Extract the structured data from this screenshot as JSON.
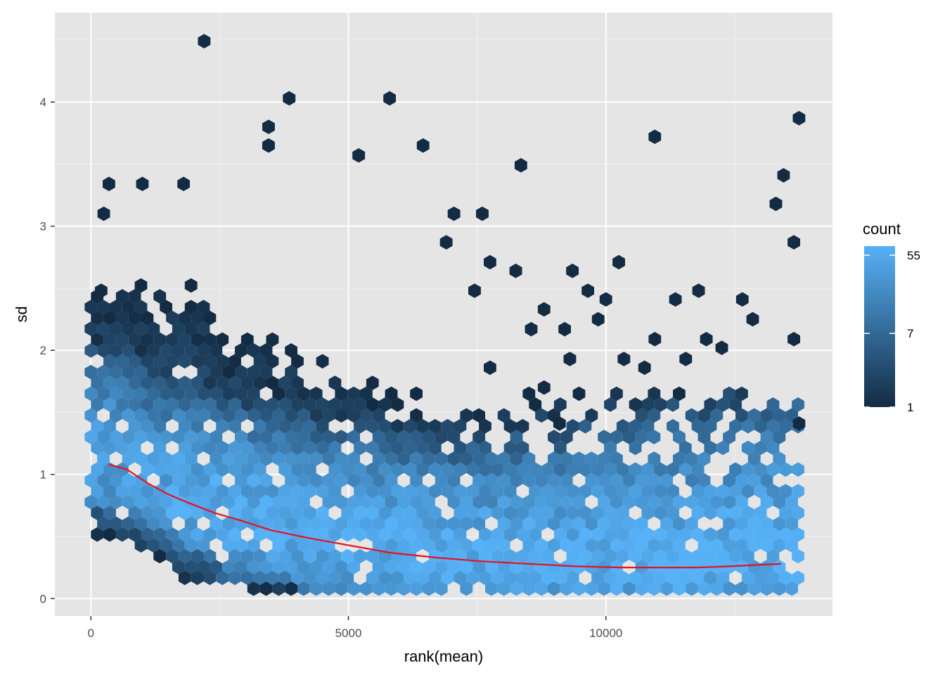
{
  "chart_data": {
    "type": "hexbin",
    "xlabel": "rank(mean)",
    "ylabel": "sd",
    "xlim": [
      -700,
      14400
    ],
    "ylim": [
      -0.14,
      4.72
    ],
    "x_ticks": [
      0,
      5000,
      10000
    ],
    "x_tick_labels": [
      "0",
      "5000",
      "10000"
    ],
    "y_ticks": [
      0,
      1,
      2,
      3,
      4
    ],
    "y_tick_labels": [
      "0",
      "1",
      "2",
      "3",
      "4"
    ],
    "grid": true,
    "background": "#e5e5e5",
    "legend": {
      "title": "count",
      "placement": "right",
      "scale": "log",
      "min": 1,
      "max": 70,
      "breaks": [
        1,
        7,
        55
      ],
      "break_labels": [
        "1",
        "7",
        "55"
      ],
      "color_low": "#132b43",
      "color_high": "#56b1f7"
    },
    "trend_line": {
      "color": "#e8101e",
      "x": [
        350,
        700,
        1100,
        1500,
        1900,
        2400,
        2900,
        3500,
        4200,
        5000,
        5800,
        6700,
        7600,
        8500,
        9400,
        10300,
        11200,
        11800,
        12400,
        12900,
        13400
      ],
      "y": [
        1.08,
        1.04,
        0.93,
        0.84,
        0.77,
        0.69,
        0.63,
        0.55,
        0.49,
        0.43,
        0.37,
        0.33,
        0.3,
        0.28,
        0.26,
        0.25,
        0.25,
        0.25,
        0.26,
        0.27,
        0.28
      ]
    },
    "isolated_points": [
      {
        "x": 2200,
        "y": 4.49
      },
      {
        "x": 3850,
        "y": 4.03
      },
      {
        "x": 5800,
        "y": 4.03
      },
      {
        "x": 3450,
        "y": 3.8
      },
      {
        "x": 3450,
        "y": 3.65
      },
      {
        "x": 5200,
        "y": 3.57
      },
      {
        "x": 6450,
        "y": 3.65
      },
      {
        "x": 8350,
        "y": 3.49
      },
      {
        "x": 10950,
        "y": 3.72
      },
      {
        "x": 13750,
        "y": 3.87
      },
      {
        "x": 13450,
        "y": 3.41
      },
      {
        "x": 13300,
        "y": 3.18
      },
      {
        "x": 13650,
        "y": 2.87
      },
      {
        "x": 7050,
        "y": 3.1
      },
      {
        "x": 7600,
        "y": 3.1
      },
      {
        "x": 6900,
        "y": 2.87
      },
      {
        "x": 7750,
        "y": 2.71
      },
      {
        "x": 8250,
        "y": 2.64
      },
      {
        "x": 9350,
        "y": 2.64
      },
      {
        "x": 10250,
        "y": 2.71
      },
      {
        "x": 7450,
        "y": 2.48
      },
      {
        "x": 9650,
        "y": 2.48
      },
      {
        "x": 10000,
        "y": 2.41
      },
      {
        "x": 11350,
        "y": 2.41
      },
      {
        "x": 11800,
        "y": 2.48
      },
      {
        "x": 12650,
        "y": 2.41
      },
      {
        "x": 12850,
        "y": 2.25
      },
      {
        "x": 8800,
        "y": 2.33
      },
      {
        "x": 9850,
        "y": 2.25
      },
      {
        "x": 8550,
        "y": 2.17
      },
      {
        "x": 9200,
        "y": 2.17
      },
      {
        "x": 10950,
        "y": 2.09
      },
      {
        "x": 11950,
        "y": 2.09
      },
      {
        "x": 12250,
        "y": 2.02
      },
      {
        "x": 13650,
        "y": 2.09
      },
      {
        "x": 10350,
        "y": 1.93
      },
      {
        "x": 10750,
        "y": 1.86
      },
      {
        "x": 11550,
        "y": 1.93
      },
      {
        "x": 9300,
        "y": 1.93
      },
      {
        "x": 8800,
        "y": 1.7
      },
      {
        "x": 7750,
        "y": 1.86
      },
      {
        "x": 13750,
        "y": 1.41
      },
      {
        "x": 9100,
        "y": 1.41
      },
      {
        "x": 200,
        "y": 2.48
      },
      {
        "x": 1000,
        "y": 3.34
      },
      {
        "x": 1800,
        "y": 3.34
      },
      {
        "x": 350,
        "y": 3.34
      },
      {
        "x": 250,
        "y": 3.1
      }
    ]
  }
}
